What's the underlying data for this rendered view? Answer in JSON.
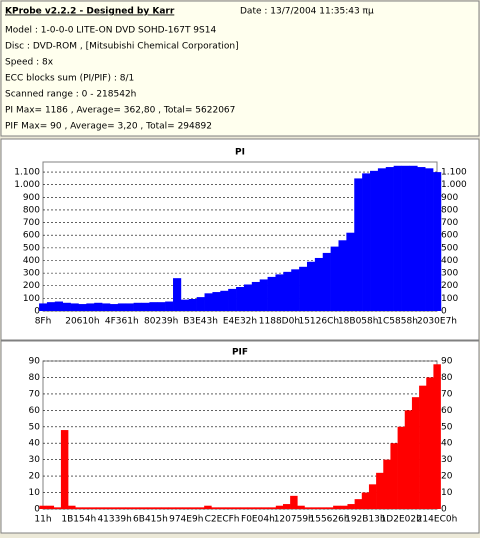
{
  "header": {
    "title": "KProbe v2.2.2 - Designed by Karr",
    "date": "Date : 13/7/2004 11:35:43 πμ",
    "lines": [
      "Model : 1-0-0-0 LITE-ON DVD SOHD-167T    9S14",
      "Disc : DVD-ROM ,  [Mitsubishi Chemical Corporation]",
      "Speed : 8x",
      "ECC blocks sum (PI/PIF) : 8/1",
      "Scanned range : 0 - 218542h",
      "PI Max= 1186 , Average= 362,80 , Total= 5622067",
      "PIF Max= 90 , Average= 3,20 , Total= 294892"
    ]
  },
  "chart_data": [
    {
      "type": "bar",
      "title": "PI",
      "color": "#0000ff",
      "grid": true,
      "categories": [
        "8Fh",
        null,
        null,
        null,
        null,
        "20610h",
        null,
        null,
        null,
        null,
        "4F361h",
        null,
        null,
        null,
        null,
        "80239h",
        null,
        null,
        null,
        null,
        "B3E43h",
        null,
        null,
        null,
        null,
        "E4E32h",
        null,
        null,
        null,
        null,
        "1188D0h",
        null,
        null,
        null,
        null,
        "15126Ch",
        null,
        null,
        null,
        null,
        "18B058h",
        null,
        null,
        null,
        null,
        "1C5858h",
        null,
        null,
        null,
        null,
        "2030E7h"
      ],
      "values": [
        60,
        70,
        75,
        65,
        60,
        55,
        60,
        65,
        60,
        55,
        60,
        60,
        65,
        65,
        70,
        70,
        75,
        260,
        90,
        95,
        110,
        140,
        150,
        160,
        175,
        190,
        210,
        230,
        250,
        270,
        290,
        310,
        330,
        350,
        390,
        420,
        460,
        510,
        560,
        620,
        1050,
        1090,
        1110,
        1130,
        1140,
        1150,
        1150,
        1150,
        1140,
        1130,
        1100
      ],
      "ylim": [
        0,
        1180
      ],
      "yticks": [
        0,
        100,
        200,
        300,
        400,
        500,
        600,
        700,
        800,
        900,
        {
          "value": 1000,
          "label": "1.000"
        },
        {
          "value": 1100,
          "label": "1.100"
        }
      ]
    },
    {
      "type": "bar",
      "title": "PIF",
      "color": "#ff0000",
      "grid": true,
      "categories": [
        "11h",
        null,
        null,
        null,
        null,
        "1B154h",
        null,
        null,
        null,
        null,
        "41339h",
        null,
        null,
        null,
        null,
        "6B415h",
        null,
        null,
        null,
        null,
        "974E9h",
        null,
        null,
        null,
        null,
        "C2ECFh",
        null,
        null,
        null,
        null,
        "F0E04h",
        null,
        null,
        null,
        null,
        "120759h",
        null,
        null,
        null,
        null,
        "155626h",
        null,
        null,
        null,
        null,
        "192B13h",
        null,
        null,
        null,
        null,
        "1D2E02h",
        null,
        null,
        null,
        null,
        "214EC0h"
      ],
      "values": [
        2,
        2,
        1,
        48,
        2,
        1,
        1,
        1,
        1,
        1,
        1,
        1,
        1,
        1,
        1,
        1,
        1,
        1,
        1,
        1,
        1,
        1,
        1,
        2,
        1,
        1,
        1,
        1,
        1,
        1,
        1,
        1,
        1,
        2,
        3,
        8,
        2,
        1,
        1,
        1,
        1,
        2,
        2,
        3,
        6,
        10,
        15,
        22,
        30,
        40,
        50,
        60,
        68,
        75,
        80,
        88
      ],
      "ylim": [
        0,
        90
      ],
      "yticks": [
        0,
        10,
        20,
        30,
        40,
        50,
        60,
        70,
        80,
        90
      ]
    }
  ]
}
